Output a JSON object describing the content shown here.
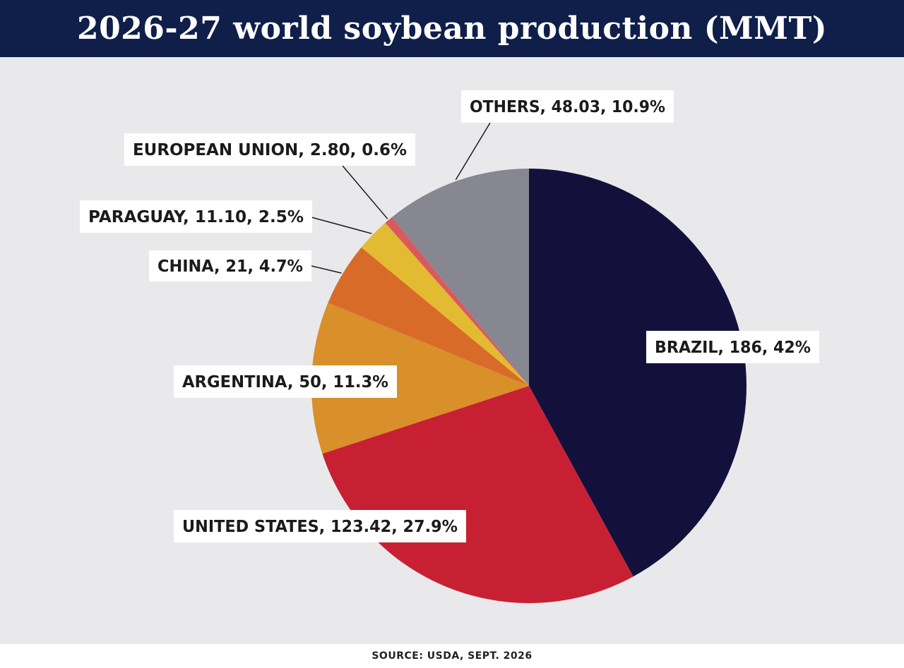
{
  "title": "2026-27 world soybean production (MMT)",
  "source": "SOURCE: USDA, SEPT. 2026",
  "chart_data": {
    "type": "pie",
    "title": "2026-27 world soybean production (MMT)",
    "units": "MMT",
    "start_angle_deg": 0,
    "direction": "clockwise",
    "slices": [
      {
        "label": "BRAZIL",
        "value": 186,
        "value_text": "186",
        "percent_text": "42%",
        "color": "#13113c"
      },
      {
        "label": "UNITED STATES",
        "value": 123.42,
        "value_text": "123.42",
        "percent_text": "27.9%",
        "color": "#c82033"
      },
      {
        "label": "ARGENTINA",
        "value": 50,
        "value_text": "50",
        "percent_text": "11.3%",
        "color": "#d98f2a"
      },
      {
        "label": "CHINA",
        "value": 21,
        "value_text": "21",
        "percent_text": "4.7%",
        "color": "#d86b28"
      },
      {
        "label": "PARAGUAY",
        "value": 11.1,
        "value_text": "11.10",
        "percent_text": "2.5%",
        "color": "#e3bb32"
      },
      {
        "label": "EUROPEAN UNION",
        "value": 2.8,
        "value_text": "2.80",
        "percent_text": "0.6%",
        "color": "#d95a5e"
      },
      {
        "label": "OTHERS",
        "value": 48.03,
        "value_text": "48.03",
        "percent_text": "10.9%",
        "color": "#878791"
      }
    ]
  }
}
